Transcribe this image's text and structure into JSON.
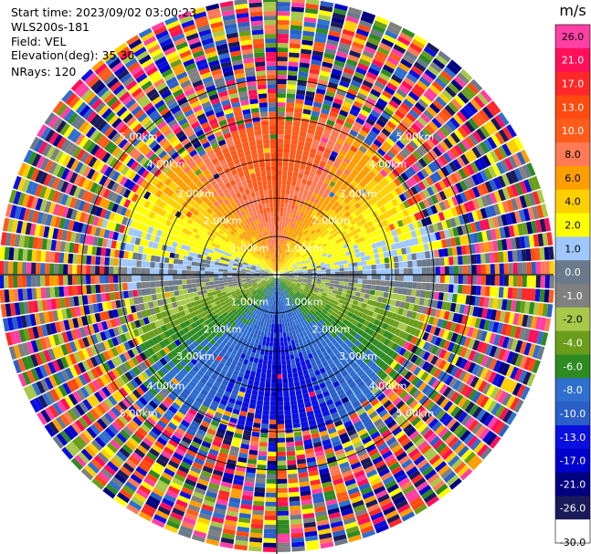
{
  "header": {
    "start_time": "Start time: 2023/09/02 03:00:23",
    "instrument": "WLS200s-181",
    "field": "Field: VEL",
    "elevation": "Elevation(deg): 35.30",
    "nrays": "NRays: 120"
  },
  "chart_data": {
    "type": "heatmap",
    "subtype": "radar PPI (polar)",
    "field": "VEL",
    "units": "m/s",
    "nrays": 120,
    "range_rings": [
      "1.00km",
      "2.00km",
      "3.00km",
      "4.00km",
      "5.00km"
    ],
    "colorbar": {
      "label": "m/s",
      "ticks": [
        "26.0",
        "21.0",
        "17.0",
        "13.0",
        "10.0",
        "8.0",
        "6.0",
        "4.0",
        "2.0",
        "1.0",
        "0.0",
        "-1.0",
        "-2.0",
        "-4.0",
        "-6.0",
        "-8.0",
        "-10.0",
        "-13.0",
        "-17.0",
        "-21.0",
        "-26.0",
        "-30.0"
      ],
      "colors": [
        "#ff3fa4",
        "#ff0f5a",
        "#ff2828",
        "#ff4a10",
        "#ff5c1c",
        "#ff7a55",
        "#ff9e00",
        "#ffd000",
        "#ffff00",
        "#a0c8ff",
        "#6a7a8c",
        "#808080",
        "#a8c84a",
        "#6a9e1a",
        "#2e8b22",
        "#2f6fcf",
        "#2a5fc8",
        "#0a10e0",
        "#0000cc",
        "#000080",
        "#1a1a5a",
        "#ffffff"
      ]
    },
    "velocity_pattern": {
      "near_range_max_km": 3.7,
      "sectors": [
        {
          "azimuth_deg": 0,
          "velocity_ms": 13.0
        },
        {
          "azimuth_deg": 30,
          "velocity_ms": 8.0
        },
        {
          "azimuth_deg": 60,
          "velocity_ms": 4.0
        },
        {
          "azimuth_deg": 80,
          "velocity_ms": 2.0
        },
        {
          "azimuth_deg": 95,
          "velocity_ms": 0.0
        },
        {
          "azimuth_deg": 120,
          "velocity_ms": -4.0
        },
        {
          "azimuth_deg": 145,
          "velocity_ms": -8.0
        },
        {
          "azimuth_deg": 180,
          "velocity_ms": -13.0
        },
        {
          "azimuth_deg": 215,
          "velocity_ms": -8.0
        },
        {
          "azimuth_deg": 240,
          "velocity_ms": -4.0
        },
        {
          "azimuth_deg": 265,
          "velocity_ms": 0.0
        },
        {
          "azimuth_deg": 285,
          "velocity_ms": 2.0
        },
        {
          "azimuth_deg": 310,
          "velocity_ms": 6.0
        },
        {
          "azimuth_deg": 335,
          "velocity_ms": 10.0
        },
        {
          "azimuth_deg": 360,
          "velocity_ms": 13.0
        }
      ]
    }
  }
}
